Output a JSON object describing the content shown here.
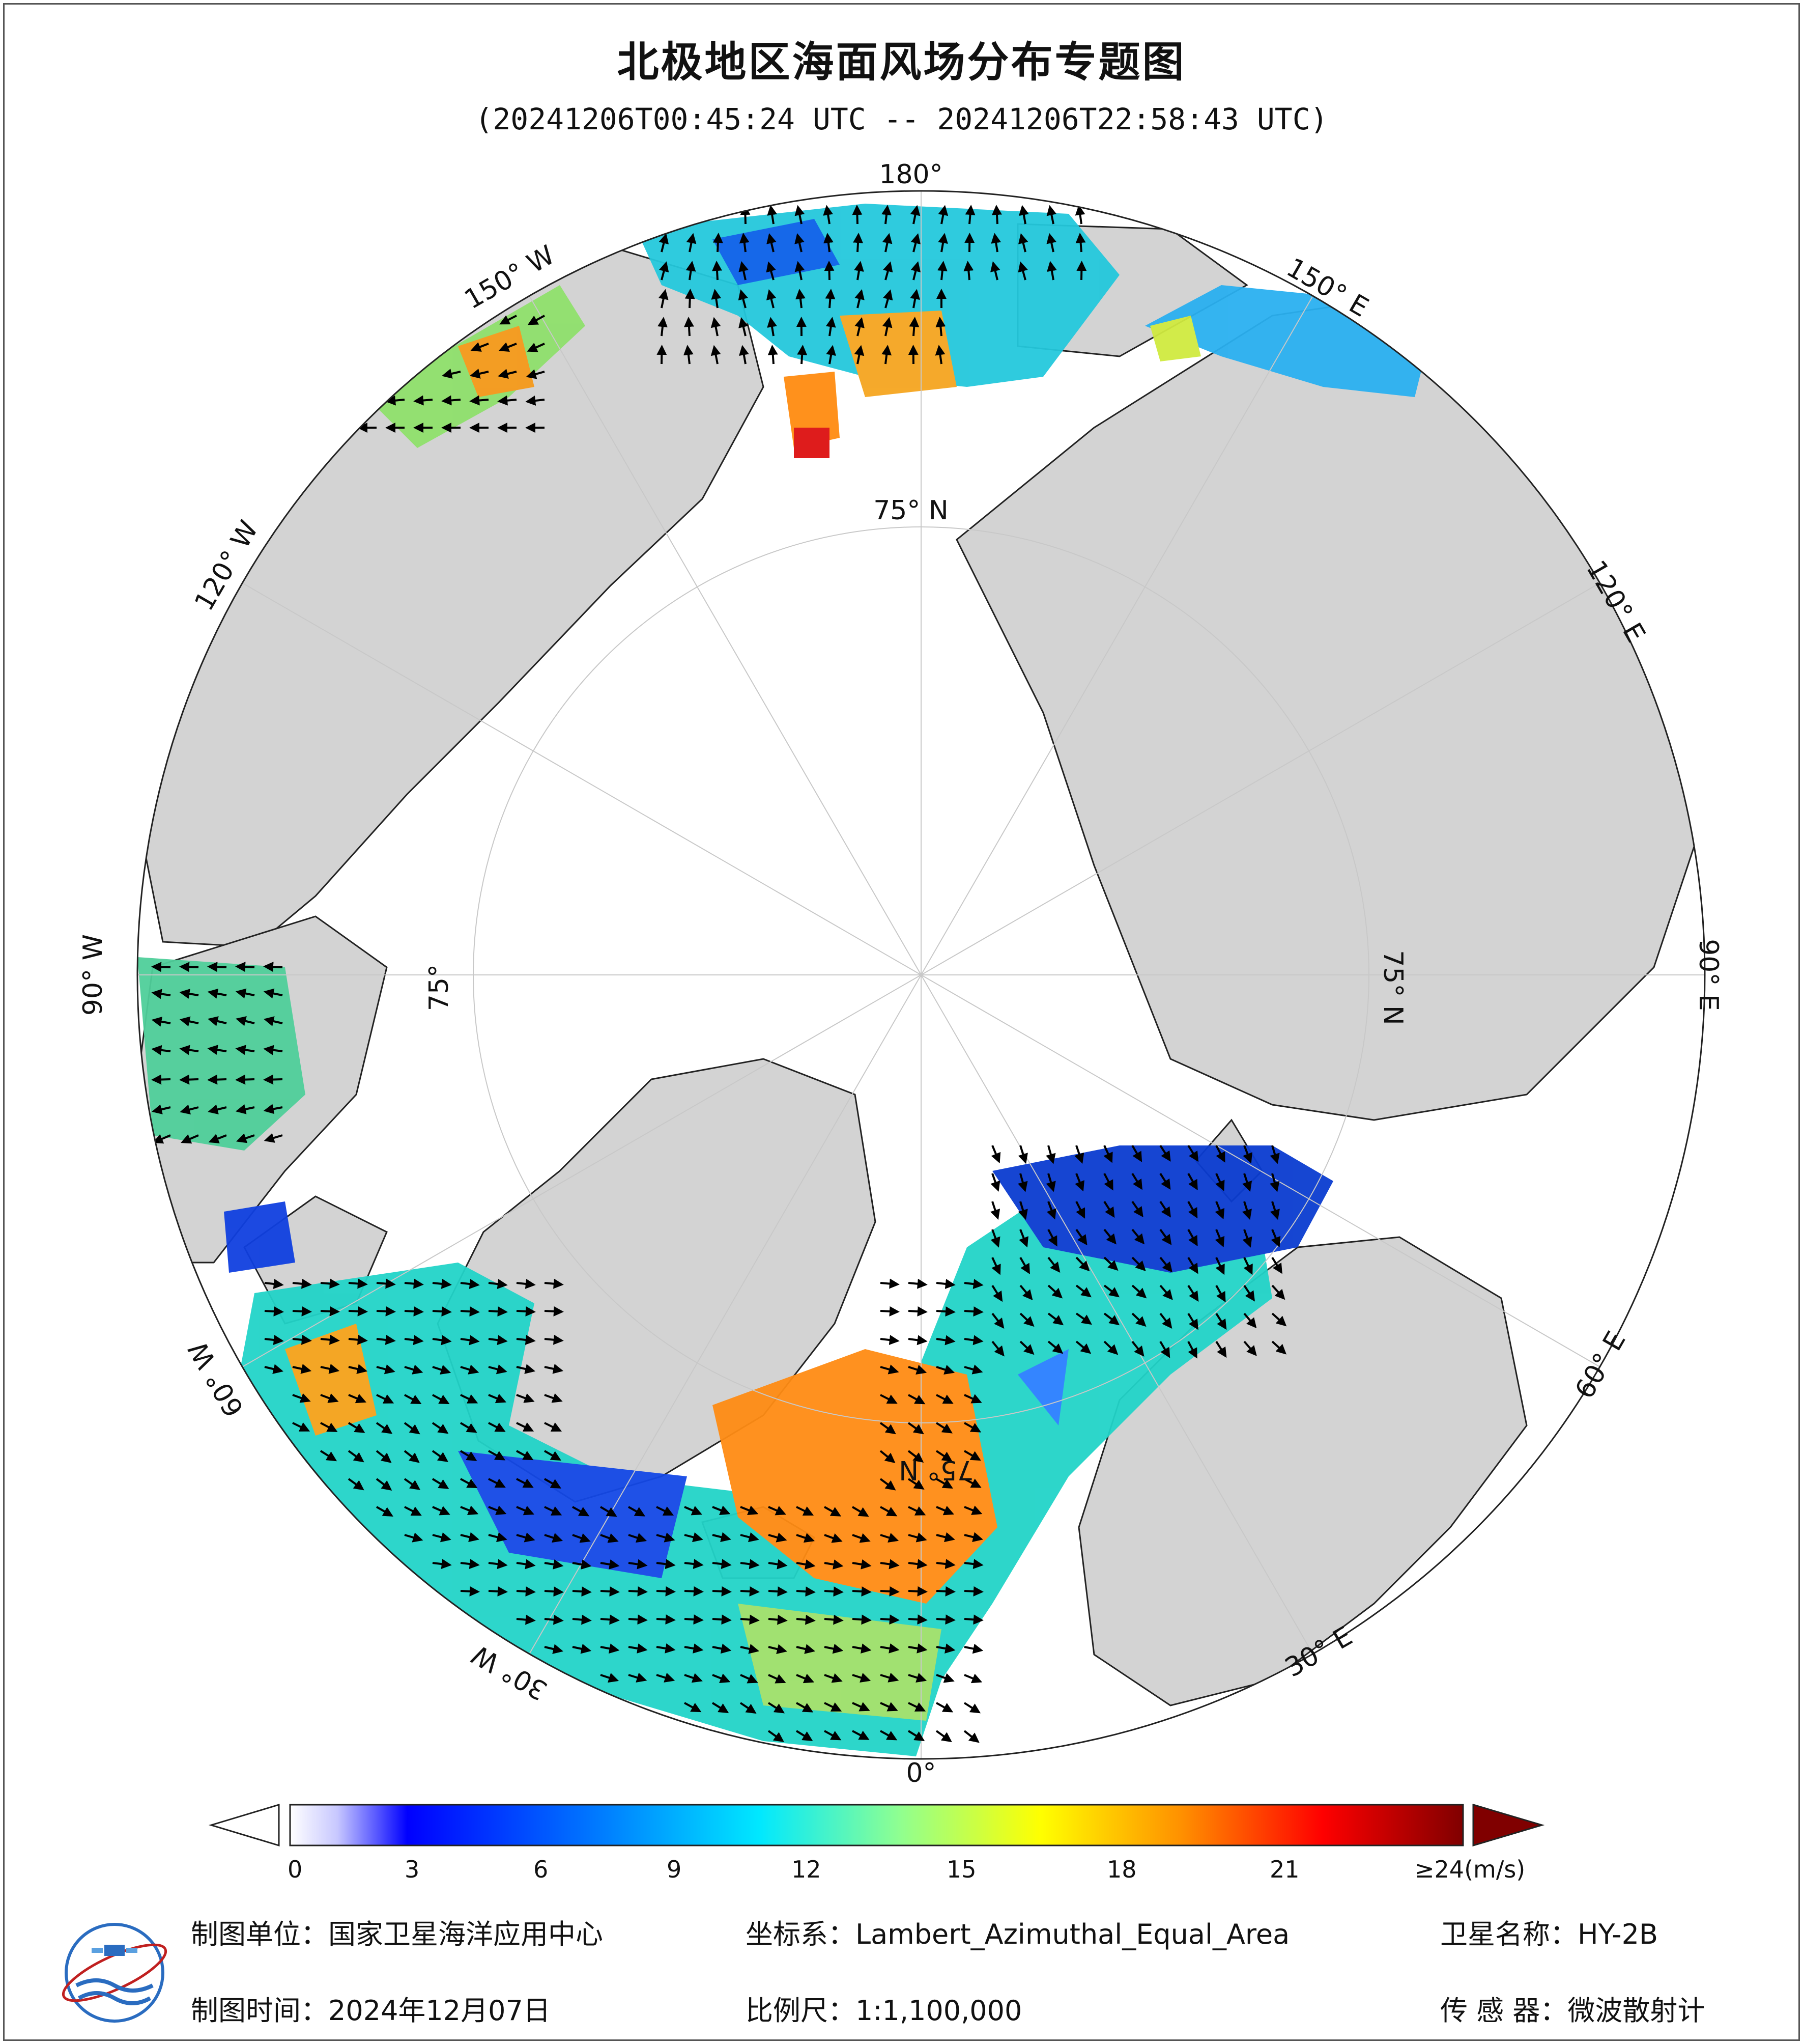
{
  "title": "北极地区海面风场分布专题图",
  "subtitle": "(20241206T00:45:24 UTC -- 20241206T22:58:43 UTC)",
  "map": {
    "projection_view": "north-polar",
    "ocean_color": "#ffffff",
    "land_color": "#d3d3d3",
    "longitude_labels": [
      {
        "text": "180°",
        "lon": 180
      },
      {
        "text": "150° E",
        "lon": 150
      },
      {
        "text": "120° E",
        "lon": 120
      },
      {
        "text": "90° E",
        "lon": 90
      },
      {
        "text": "60° E",
        "lon": 60
      },
      {
        "text": "30° E",
        "lon": 30
      },
      {
        "text": "0°",
        "lon": 0
      },
      {
        "text": "30° W",
        "lon": -30
      },
      {
        "text": "60° W",
        "lon": -60
      },
      {
        "text": "90° W",
        "lon": -90
      },
      {
        "text": "120° W",
        "lon": -120
      },
      {
        "text": "150° W",
        "lon": -150
      }
    ],
    "latitude_labels": [
      {
        "text": "75° N",
        "lon": 180
      },
      {
        "text": "75° N",
        "lon": 90
      },
      {
        "text": "75°",
        "lon": -90
      },
      {
        "text": "75° N",
        "lon": 0
      }
    ]
  },
  "colorbar": {
    "unit": "(m/s)",
    "ticks": [
      "0",
      "3",
      "6",
      "9",
      "12",
      "15",
      "18",
      "21",
      "≥24"
    ],
    "tick_values": [
      0,
      3,
      6,
      9,
      12,
      15,
      18,
      21,
      24
    ],
    "colors": [
      "#ffffff",
      "#0000ff",
      "#0080ff",
      "#00e0ff",
      "#a0ff80",
      "#ffff00",
      "#ff8000",
      "#ff0000",
      "#800000"
    ]
  },
  "footer": {
    "unit_label": "制图单位：国家卫星海洋应用中心",
    "coord_label": "坐标系：Lambert_Azimuthal_Equal_Area",
    "satellite_label": "卫星名称：HY-2B",
    "date_label": "制图时间：2024年12月07日",
    "scale_label": "比例尺：1:1,100,000",
    "sensor_label": "传 感 器：微波散射计"
  }
}
